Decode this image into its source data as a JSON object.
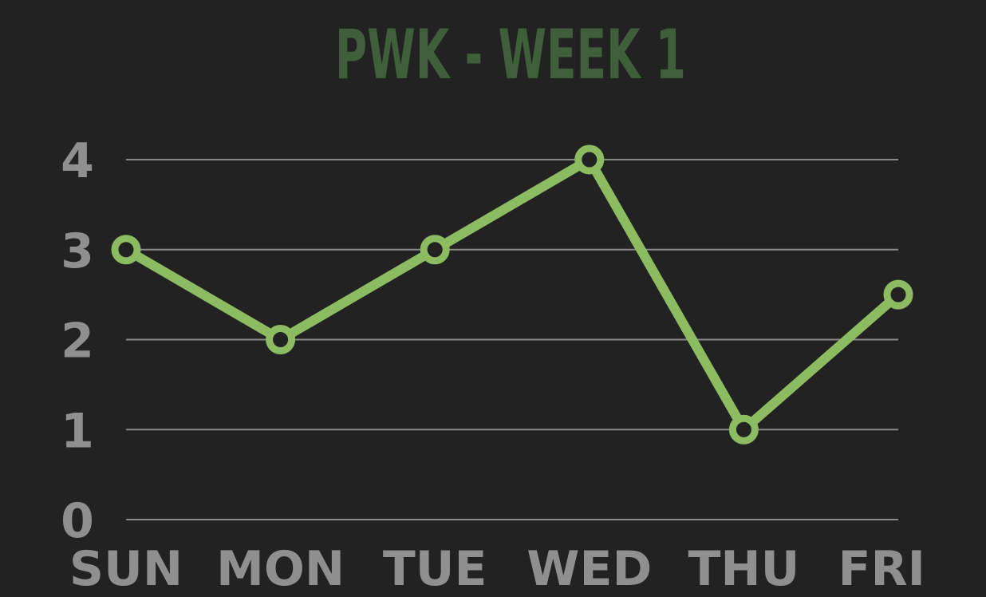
{
  "chart_data": {
    "type": "line",
    "title": "PWK - WEEK 1",
    "xlabel": "",
    "ylabel": "",
    "categories": [
      "SUN",
      "MON",
      "TUE",
      "WED",
      "THU",
      "FRI"
    ],
    "series": [
      {
        "values": [
          3,
          2,
          3,
          4,
          1,
          2.5
        ],
        "color": "#8cbb62"
      }
    ],
    "ylim": [
      0,
      4
    ],
    "yticks": [
      "0",
      "1",
      "2",
      "3",
      "4"
    ],
    "grid": true,
    "legend": "none",
    "colors": {
      "background": "#222222",
      "title": "#3f5e3a",
      "tick_label": "#8f8f8f",
      "grid": "#8a8a8a",
      "marker_fill": "#222222"
    }
  }
}
